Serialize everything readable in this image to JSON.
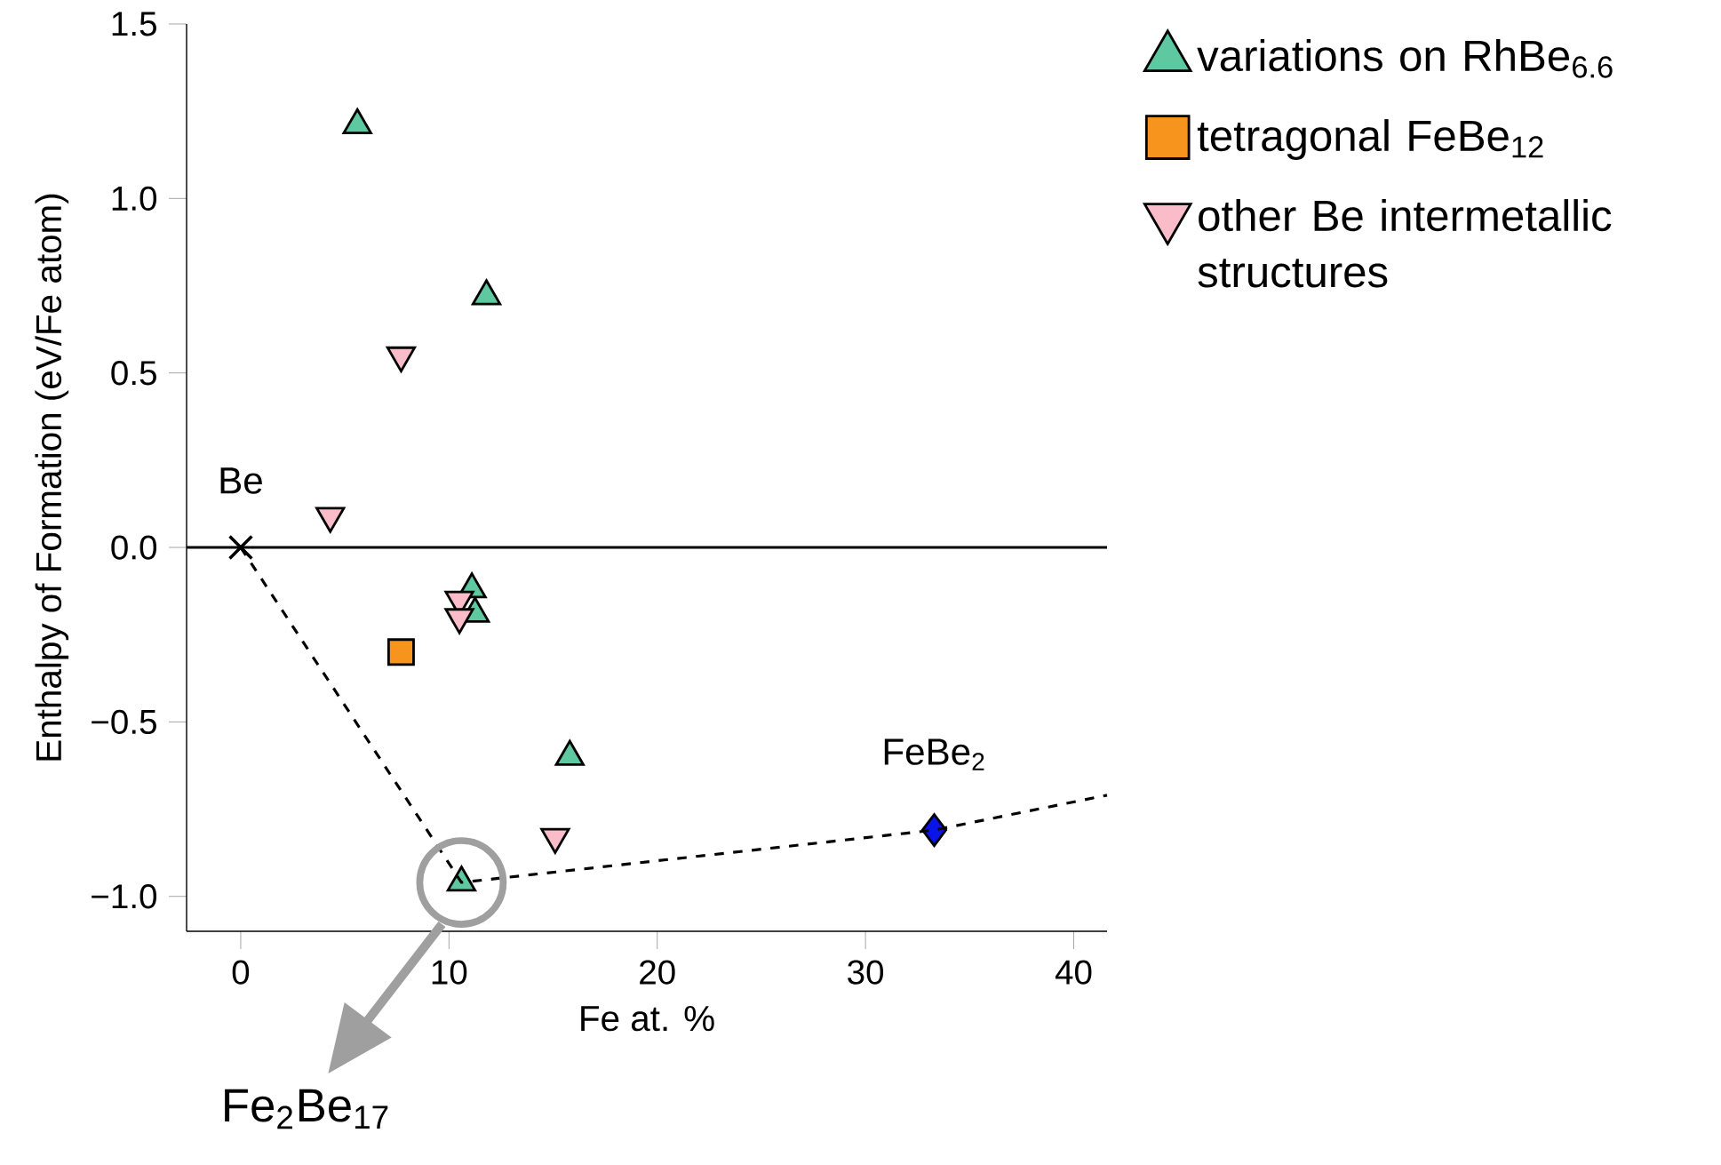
{
  "chart_data": {
    "type": "scatter",
    "xlabel": "Fe at. %",
    "ylabel": "Enthalpy of Formation (eV/Fe atom)",
    "xlim": [
      -2.6,
      41.6
    ],
    "ylim": [
      -1.1,
      1.5
    ],
    "xticks": [
      0,
      10,
      20,
      30,
      40
    ],
    "yticks": [
      {
        "value": -1.0,
        "label": "−1.0"
      },
      {
        "value": -0.5,
        "label": "−0.5"
      },
      {
        "value": 0.0,
        "label": "0.0"
      },
      {
        "value": 0.5,
        "label": "0.5"
      },
      {
        "value": 1.0,
        "label": "1.0"
      },
      {
        "value": 1.5,
        "label": "1.5"
      }
    ],
    "legend": "right",
    "series": [
      {
        "name": "variations on RhBe$_{6.6}$",
        "marker": "triangle",
        "color": "#5ec8a0",
        "x": [
          5.6,
          11.8,
          11.1,
          11.25,
          15.8,
          10.6
        ],
        "values": [
          1.21,
          0.72,
          -0.12,
          -0.19,
          -0.6,
          -0.96
        ]
      },
      {
        "name": "tetragonal FeBe$_{12}$",
        "marker": "square",
        "color": "#f7941d",
        "x": [
          7.7
        ],
        "values": [
          -0.3
        ]
      },
      {
        "name": "other Be intermetallic structures",
        "marker": "triangle-down",
        "color": "#f9bcc8",
        "x": [
          4.3,
          7.7,
          10.5,
          10.5,
          15.1
        ],
        "values": [
          0.09,
          0.55,
          -0.15,
          -0.2,
          -0.83
        ]
      },
      {
        "marker": "diamond",
        "color": "#0a14e6",
        "x": [
          33.3
        ],
        "values": [
          -0.81
        ]
      },
      {
        "marker": "cross",
        "color": "#000000",
        "x": [
          0
        ],
        "values": [
          0
        ]
      },
      {
        "type": "line",
        "line_style": "dashed",
        "color": "#000000",
        "x": [
          0,
          10.6,
          33.3,
          41.6
        ],
        "values": [
          0,
          -0.96,
          -0.81,
          -0.71
        ]
      }
    ],
    "ref_lines": [
      {
        "axis": "y",
        "value": 0,
        "color": "#000000"
      }
    ],
    "annotations": [
      {
        "text": "Be",
        "x": 0,
        "y": 0
      },
      {
        "text": "FeBe$_{2}$",
        "x": 33.3,
        "y": -0.81
      },
      "Fe$_{2}$Be$_{17}$"
    ]
  }
}
